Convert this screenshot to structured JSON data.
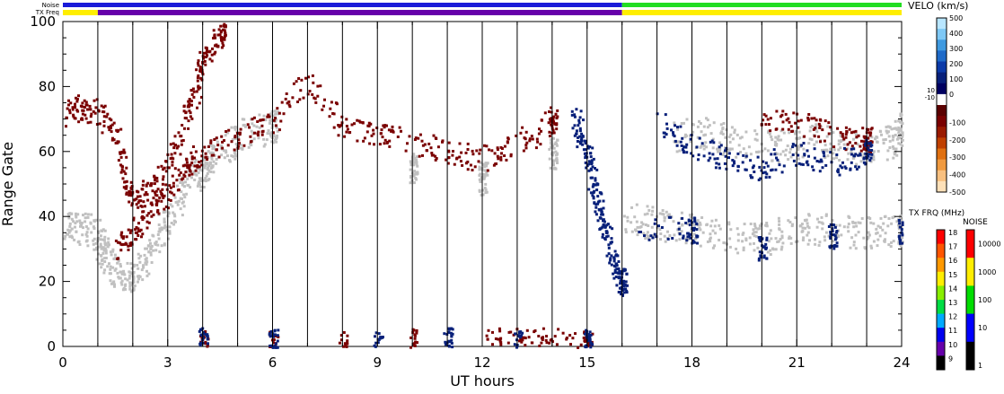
{
  "chart_data": {
    "type": "heatmap",
    "xlabel": "UT hours",
    "ylabel": "Range Gate",
    "xlim": [
      0,
      24
    ],
    "ylim": [
      0,
      100
    ],
    "x_ticks": [
      "0",
      "3",
      "6",
      "9",
      "12",
      "15",
      "18",
      "21",
      "24"
    ],
    "y_ticks": [
      "0",
      "20",
      "40",
      "60",
      "80",
      "100"
    ],
    "hour_marker_lines": [
      1,
      2,
      3,
      4,
      5,
      6,
      7,
      8,
      9,
      10,
      11,
      12,
      13,
      14,
      15,
      16,
      17,
      18,
      19,
      20,
      21,
      22,
      23
    ],
    "strip_labels": {
      "noise": "Noise",
      "freq": "TX Freq"
    },
    "noise_strip": [
      {
        "from": 0,
        "to": 16,
        "level": "low-mixed"
      },
      {
        "from": 16,
        "to": 24,
        "level": "mid"
      }
    ],
    "freq_strip": [
      {
        "from": 0,
        "to": 1,
        "mhz": 15
      },
      {
        "from": 1,
        "to": 16,
        "mhz": 10
      },
      {
        "from": 16,
        "to": 24,
        "mhz": 15
      }
    ],
    "velocity_colorbar": {
      "title": "VELO (km/s)",
      "ticks": [
        "500",
        "400",
        "300",
        "200",
        "100",
        "0",
        "-100",
        "-200",
        "-300",
        "-400",
        "-500"
      ],
      "zero_labels": [
        "10",
        "-10"
      ],
      "colors": [
        "#b8e6ff",
        "#7ec8f5",
        "#3f9ae0",
        "#1e6ac8",
        "#0b3aa8",
        "#08207a",
        "#000060",
        "#ffffff",
        "#5a0000",
        "#7a0000",
        "#9a1a00",
        "#c04000",
        "#e07010",
        "#f09a40",
        "#f8c080",
        "#fde0b8"
      ]
    },
    "frequency_colorbar": {
      "title": "TX FRQ (MHz)",
      "ticks": [
        "18",
        "17",
        "16",
        "15",
        "14",
        "13",
        "12",
        "11",
        "10",
        "9"
      ],
      "colors": [
        "#ff0000",
        "#ff5500",
        "#ff9900",
        "#ffee00",
        "#88ee00",
        "#00dd44",
        "#00aaff",
        "#0000ee",
        "#6600aa",
        "#000000"
      ]
    },
    "noise_colorbar": {
      "title": "NOISE",
      "ticks": [
        "10000",
        "1000",
        "100",
        "10",
        "1"
      ],
      "colors": [
        "#ff0000",
        "#ffee00",
        "#00dd00",
        "#0000ff",
        "#000000"
      ]
    },
    "series": [
      {
        "kind": "groundscatter",
        "color": "#c0c0c0",
        "points": [
          [
            0,
            37
          ],
          [
            0.5,
            37
          ],
          [
            1,
            34
          ],
          [
            1.2,
            28
          ],
          [
            1.6,
            22
          ],
          [
            2,
            22
          ],
          [
            2.5,
            30
          ],
          [
            3,
            40
          ],
          [
            3.5,
            50
          ],
          [
            4,
            55
          ],
          [
            4.3,
            58
          ],
          [
            5,
            65
          ],
          [
            6,
            68
          ],
          [
            10,
            55
          ],
          [
            12,
            52
          ],
          [
            14,
            60
          ],
          [
            16,
            40
          ],
          [
            17,
            38
          ],
          [
            18,
            36
          ],
          [
            19,
            34
          ],
          [
            20,
            33
          ],
          [
            21,
            37
          ],
          [
            22,
            36
          ],
          [
            23,
            35
          ],
          [
            24,
            36
          ],
          [
            17.5,
            65
          ],
          [
            18.5,
            66
          ],
          [
            19.5,
            62
          ],
          [
            20.5,
            62
          ],
          [
            21.5,
            64
          ],
          [
            22.5,
            61
          ],
          [
            23.5,
            62
          ],
          [
            24,
            67
          ]
        ]
      },
      {
        "kind": "velocity-negative",
        "color": "#7a0000",
        "points": [
          [
            0,
            72
          ],
          [
            0.5,
            74
          ],
          [
            1,
            72
          ],
          [
            1.5,
            65
          ],
          [
            1.8,
            50
          ],
          [
            2,
            46
          ],
          [
            2.5,
            48
          ],
          [
            3,
            55
          ],
          [
            3.5,
            70
          ],
          [
            3.8,
            80
          ],
          [
            4,
            90
          ],
          [
            4.5,
            96
          ],
          [
            1.5,
            30
          ],
          [
            2,
            35
          ],
          [
            2.5,
            42
          ],
          [
            3,
            48
          ],
          [
            3.5,
            55
          ],
          [
            4,
            60
          ],
          [
            5,
            65
          ],
          [
            6,
            70
          ],
          [
            7,
            82
          ],
          [
            8,
            68
          ],
          [
            9,
            66
          ],
          [
            10,
            63
          ],
          [
            11,
            60
          ],
          [
            12,
            58
          ],
          [
            13,
            62
          ],
          [
            14,
            70
          ],
          [
            20,
            70
          ],
          [
            21,
            70
          ],
          [
            22,
            65
          ],
          [
            23,
            64
          ],
          [
            4,
            1
          ],
          [
            6,
            1
          ],
          [
            8,
            1
          ],
          [
            10,
            2
          ],
          [
            12,
            2
          ],
          [
            13,
            2
          ],
          [
            14,
            2
          ],
          [
            15,
            1
          ]
        ]
      },
      {
        "kind": "velocity-positive",
        "color": "#08207a",
        "points": [
          [
            14.6,
            72
          ],
          [
            14.8,
            65
          ],
          [
            15,
            58
          ],
          [
            15.2,
            48
          ],
          [
            15.4,
            40
          ],
          [
            15.6,
            32
          ],
          [
            15.8,
            24
          ],
          [
            16,
            20
          ],
          [
            17,
            70
          ],
          [
            18,
            62
          ],
          [
            19,
            58
          ],
          [
            20,
            55
          ],
          [
            21,
            60
          ],
          [
            22,
            56
          ],
          [
            23,
            60
          ],
          [
            16.5,
            37
          ],
          [
            18,
            36
          ],
          [
            20,
            30
          ],
          [
            22,
            34
          ],
          [
            24,
            36
          ],
          [
            4,
            2
          ],
          [
            6,
            2
          ],
          [
            9,
            1
          ],
          [
            11,
            2
          ],
          [
            13,
            1
          ],
          [
            15,
            2
          ]
        ]
      }
    ]
  }
}
